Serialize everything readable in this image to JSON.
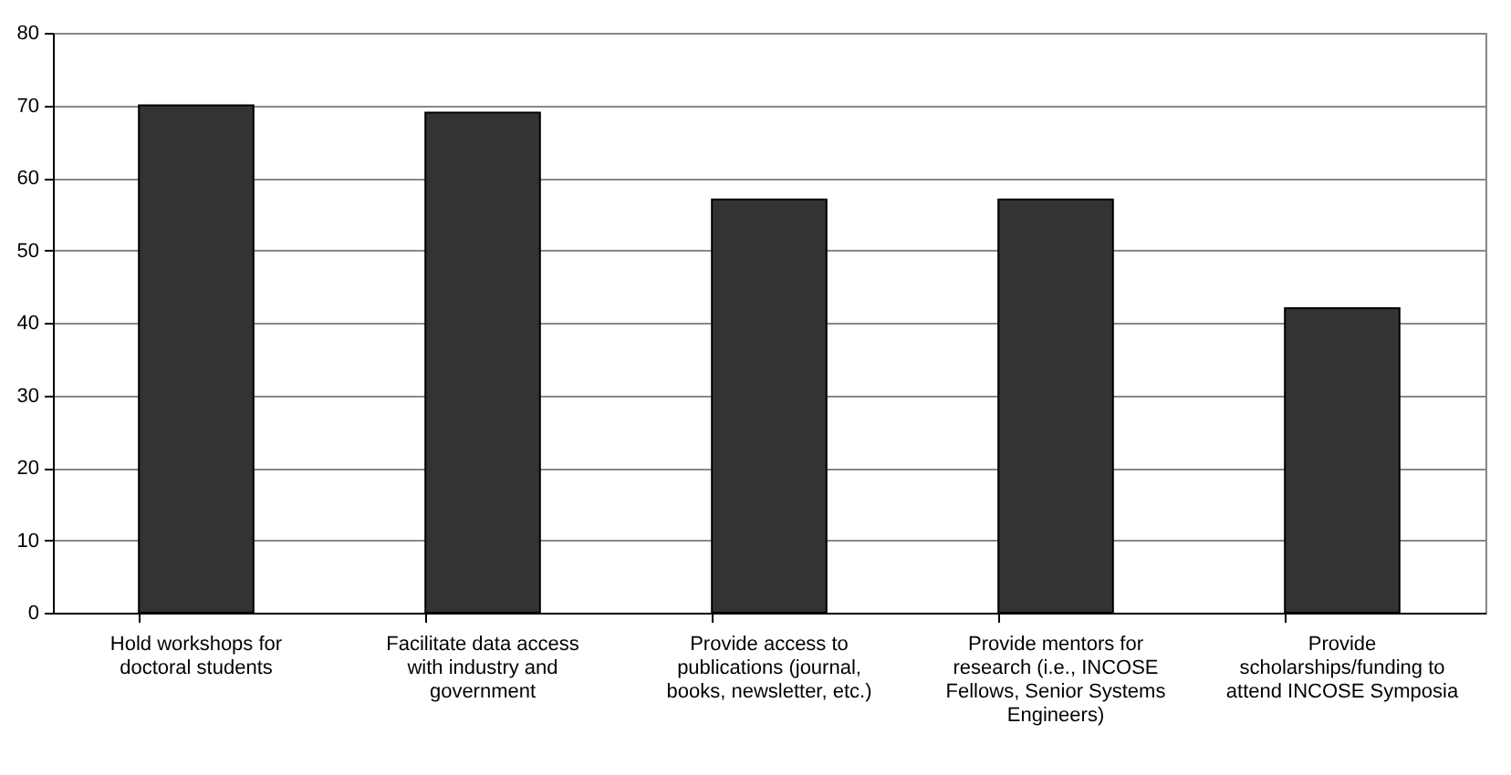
{
  "chart_data": {
    "type": "bar",
    "categories": [
      "Hold workshops for doctoral students",
      "Facilitate data access with industry and government",
      "Provide access to publications (journal, books, newsletter, etc.)",
      "Provide mentors for research (i.e., INCOSE Fellows, Senior Systems Engineers)",
      "Provide scholarships/funding to attend INCOSE Symposia"
    ],
    "values": [
      70,
      69,
      57,
      57,
      42
    ],
    "color": "#333333",
    "ylim": [
      0,
      80
    ],
    "yticks": [
      0,
      10,
      20,
      30,
      40,
      50,
      60,
      70,
      80
    ],
    "grid": "y"
  }
}
